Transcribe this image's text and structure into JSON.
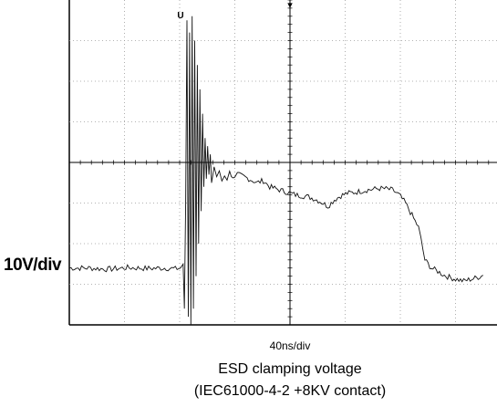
{
  "chart_data": {
    "type": "line",
    "title": "ESD clamping voltage",
    "subtitle": "(IEC61000-4-2 +8KV contact)",
    "ylabel": "10V/div",
    "xlabel": "40ns/div",
    "x_unit": "ns",
    "y_unit": "V",
    "x_range_ns": [
      -200,
      120
    ],
    "y_range_v": [
      -40,
      40
    ],
    "grid": true,
    "trigger_marker": "▾",
    "channel_marker": "U",
    "series": [
      {
        "points": [
          [
            -200,
            -26
          ],
          [
            -185,
            -26
          ],
          [
            -170,
            -26.3
          ],
          [
            -155,
            -25.9
          ],
          [
            -140,
            -26.1
          ],
          [
            -125,
            -26
          ],
          [
            -118,
            -26.2
          ],
          [
            -114,
            -26
          ],
          [
            -112,
            -25
          ],
          [
            -111,
            -36
          ],
          [
            -110,
            -10
          ],
          [
            -109,
            35
          ],
          [
            -108,
            -38
          ],
          [
            -107,
            32
          ],
          [
            -106,
            -40
          ],
          [
            -105,
            36
          ],
          [
            -104,
            -36
          ],
          [
            -103,
            30
          ],
          [
            -102,
            -28
          ],
          [
            -101,
            24
          ],
          [
            -100,
            -20
          ],
          [
            -99,
            18
          ],
          [
            -98,
            -12
          ],
          [
            -97,
            12
          ],
          [
            -96,
            -6
          ],
          [
            -95,
            6
          ],
          [
            -94,
            -4
          ],
          [
            -93,
            4
          ],
          [
            -92,
            -3
          ],
          [
            -91,
            2
          ],
          [
            -90,
            -5
          ],
          [
            -88,
            -1
          ],
          [
            -86,
            -4
          ],
          [
            -84,
            -2
          ],
          [
            -82,
            -4.5
          ],
          [
            -80,
            -3
          ],
          [
            -78,
            -4
          ],
          [
            -76,
            -2.5
          ],
          [
            -72,
            -4
          ],
          [
            -70,
            -3
          ],
          [
            -65,
            -3.5
          ],
          [
            -60,
            -4.2
          ],
          [
            -55,
            -5
          ],
          [
            -50,
            -4.5
          ],
          [
            -45,
            -6
          ],
          [
            -40,
            -6.5
          ],
          [
            -35,
            -7
          ],
          [
            -30,
            -7.5
          ],
          [
            -25,
            -8
          ],
          [
            -20,
            -8.2
          ],
          [
            -15,
            -8.5
          ],
          [
            -10,
            -9
          ],
          [
            -5,
            -9.8
          ],
          [
            0,
            -10.8
          ],
          [
            5,
            -9.2
          ],
          [
            10,
            -8.2
          ],
          [
            15,
            -7.6
          ],
          [
            20,
            -7.4
          ],
          [
            25,
            -7.1
          ],
          [
            30,
            -6.8
          ],
          [
            35,
            -6.6
          ],
          [
            40,
            -6.4
          ],
          [
            45,
            -6.5
          ],
          [
            50,
            -6.8
          ],
          [
            55,
            -8
          ],
          [
            60,
            -10
          ],
          [
            65,
            -13
          ],
          [
            70,
            -16
          ],
          [
            72,
            -19
          ],
          [
            75,
            -24
          ],
          [
            80,
            -26
          ],
          [
            85,
            -26.8
          ],
          [
            90,
            -27.8
          ],
          [
            95,
            -28.4
          ],
          [
            100,
            -28.8
          ],
          [
            105,
            -29.2
          ],
          [
            110,
            -28.8
          ],
          [
            115,
            -28.4
          ],
          [
            120,
            -27.8
          ]
        ]
      }
    ]
  }
}
